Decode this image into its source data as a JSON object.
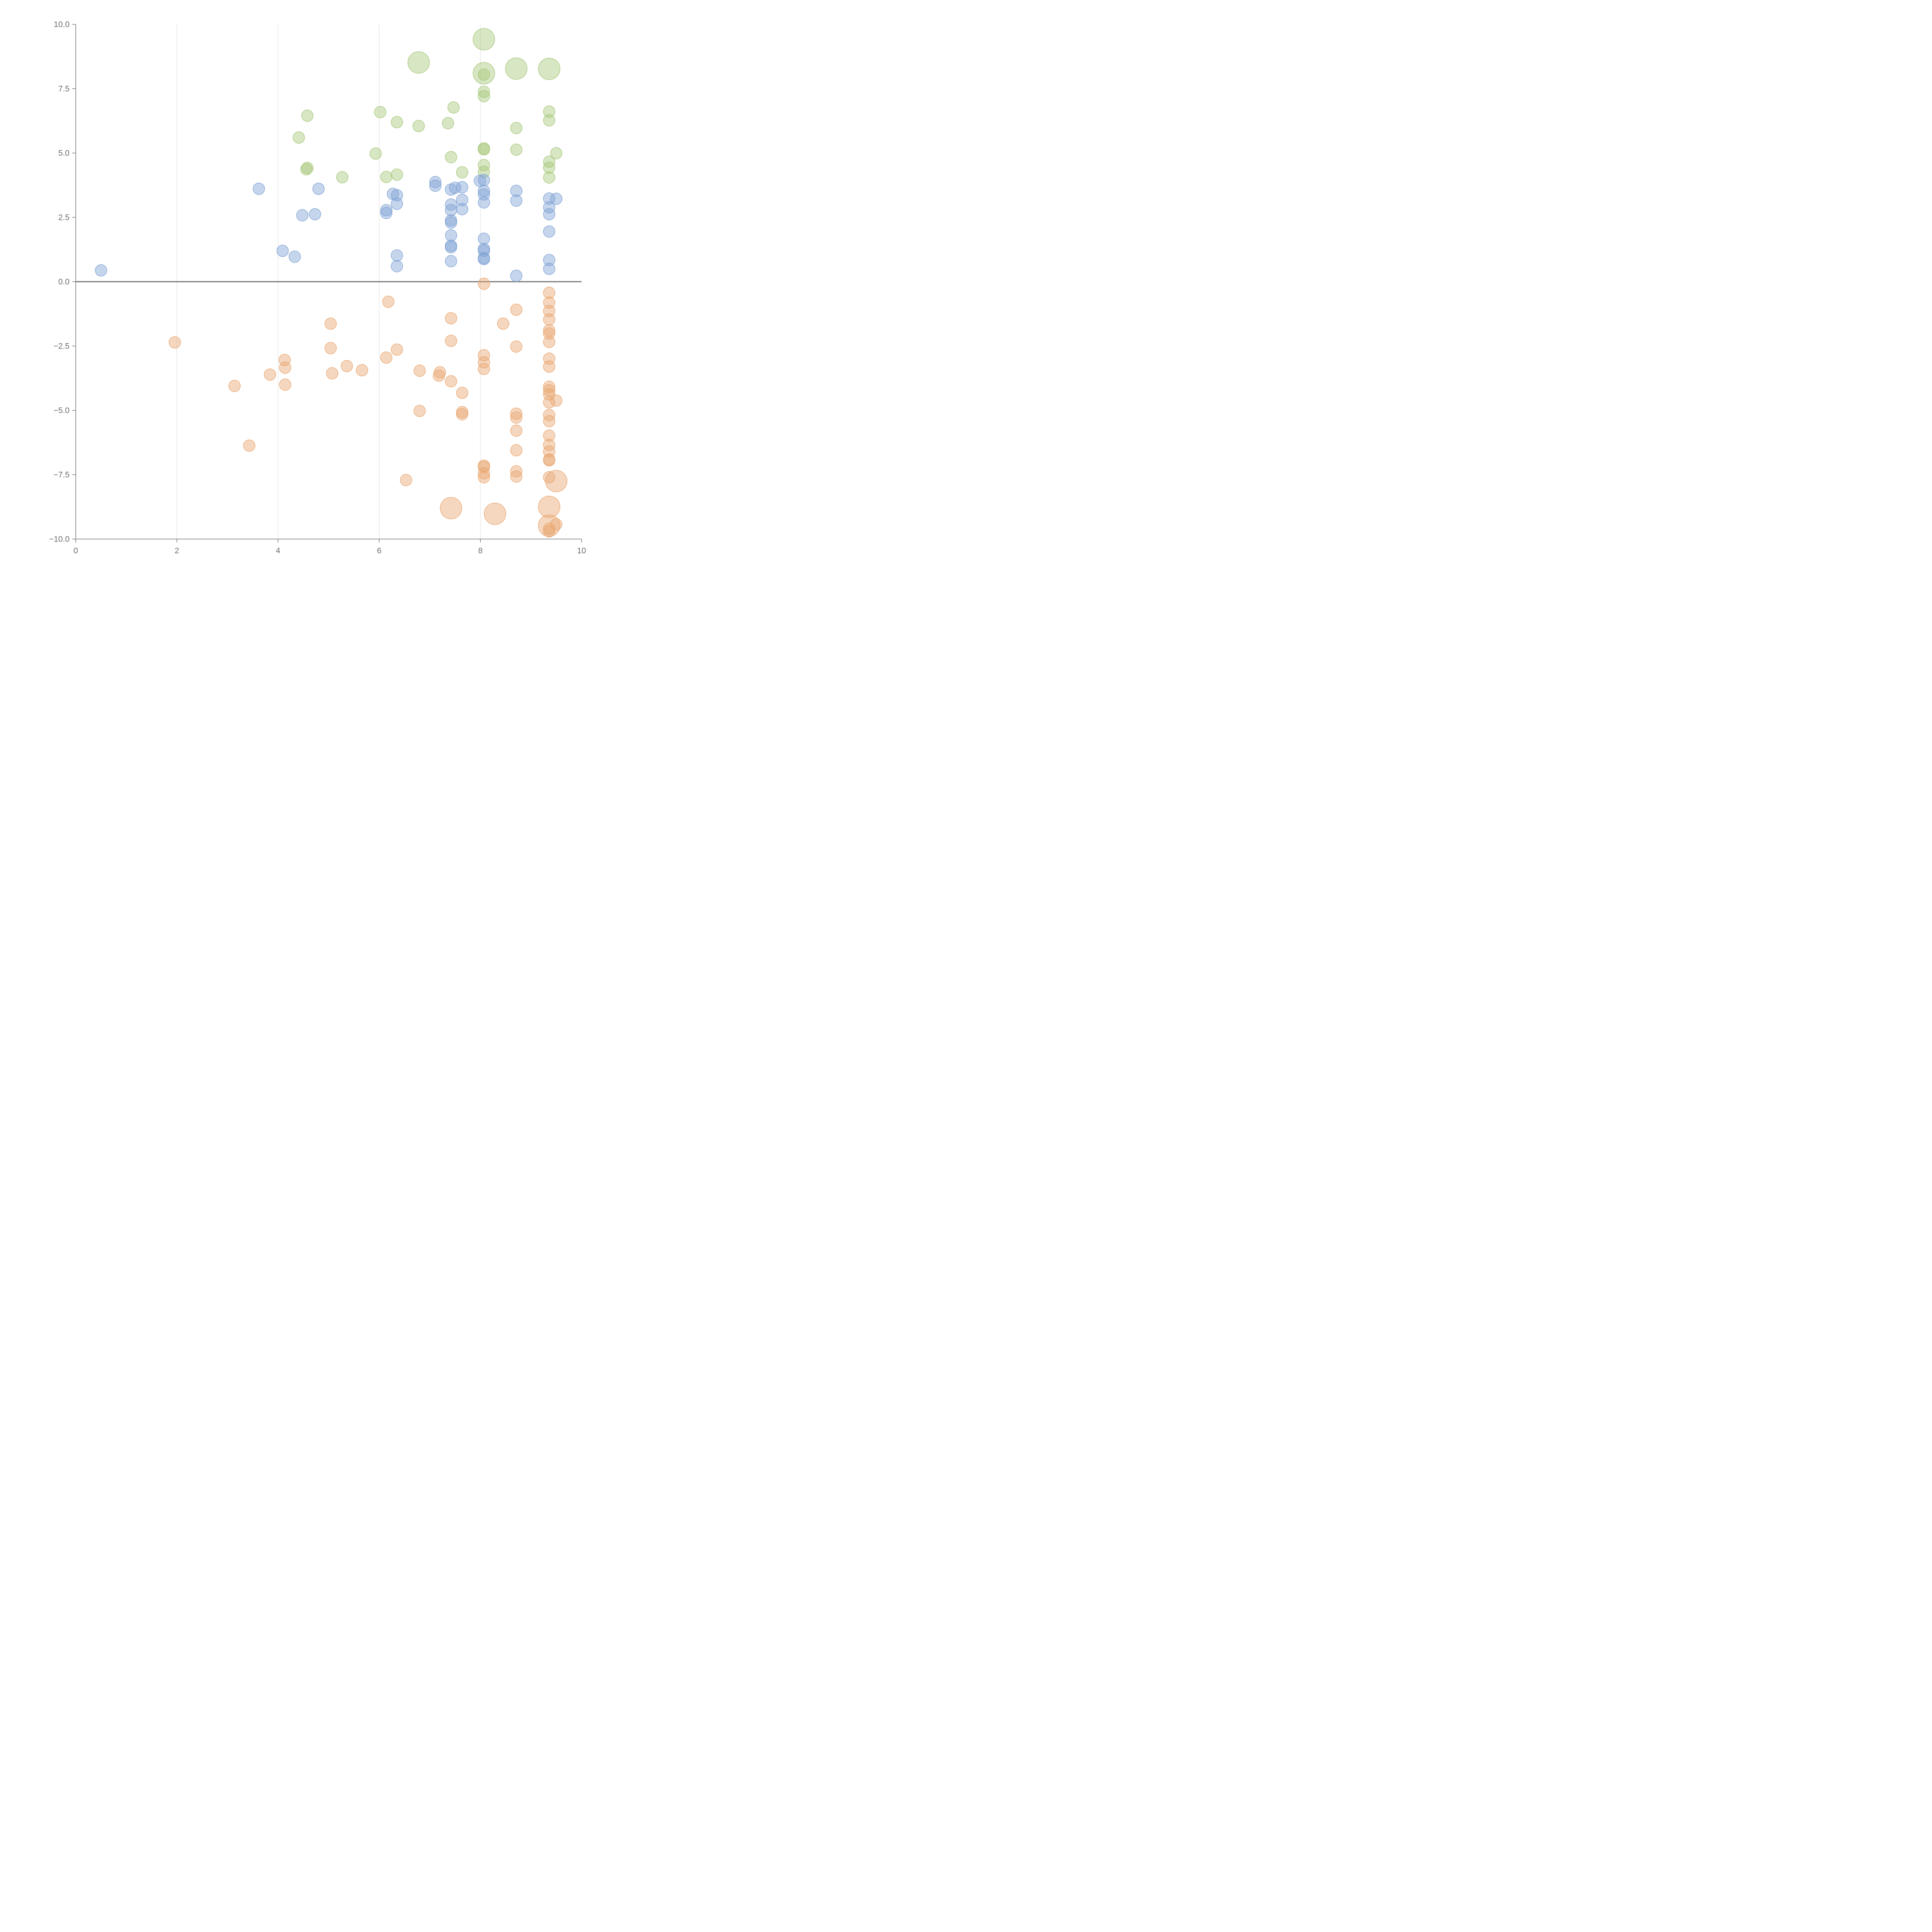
{
  "chart_data": {
    "type": "scatter",
    "title": "",
    "xlabel": "",
    "ylabel": "",
    "xlim": [
      0,
      10
    ],
    "ylim": [
      -10,
      10
    ],
    "x_ticks": [
      0,
      2,
      4,
      6,
      8,
      10
    ],
    "x_tick_labels": [
      "0",
      "2",
      "4",
      "6",
      "8",
      "10"
    ],
    "y_ticks": [
      -10,
      -7.5,
      -5,
      -2.5,
      0,
      2.5,
      5,
      7.5,
      10
    ],
    "y_tick_labels": [
      "−10.0",
      "−7.5",
      "−5.0",
      "−2.5",
      "0.0",
      "2.5",
      "5.0",
      "7.5",
      "10.0"
    ],
    "grid": "vertical",
    "zero_line": true,
    "series": [
      {
        "name": "green",
        "color": "#a7c77a",
        "points": [
          {
            "x": 8.07,
            "y": 9.42,
            "s": 2
          },
          {
            "x": 6.78,
            "y": 8.52,
            "s": 2
          },
          {
            "x": 8.71,
            "y": 8.28,
            "s": 2
          },
          {
            "x": 9.36,
            "y": 8.27,
            "s": 2
          },
          {
            "x": 8.07,
            "y": 8.1,
            "s": 2
          },
          {
            "x": 8.07,
            "y": 8.05,
            "s": 1
          },
          {
            "x": 8.07,
            "y": 7.38,
            "s": 1
          },
          {
            "x": 8.07,
            "y": 7.21,
            "s": 1
          },
          {
            "x": 7.47,
            "y": 6.77,
            "s": 1
          },
          {
            "x": 6.02,
            "y": 6.59,
            "s": 1
          },
          {
            "x": 9.36,
            "y": 6.61,
            "s": 1
          },
          {
            "x": 4.58,
            "y": 6.45,
            "s": 1
          },
          {
            "x": 9.36,
            "y": 6.27,
            "s": 1
          },
          {
            "x": 6.35,
            "y": 6.2,
            "s": 1
          },
          {
            "x": 7.36,
            "y": 6.16,
            "s": 1
          },
          {
            "x": 6.78,
            "y": 6.05,
            "s": 1
          },
          {
            "x": 8.71,
            "y": 5.97,
            "s": 1
          },
          {
            "x": 4.41,
            "y": 5.6,
            "s": 1
          },
          {
            "x": 8.07,
            "y": 5.18,
            "s": 1
          },
          {
            "x": 8.07,
            "y": 5.14,
            "s": 1
          },
          {
            "x": 8.71,
            "y": 5.13,
            "s": 1
          },
          {
            "x": 9.5,
            "y": 4.99,
            "s": 1
          },
          {
            "x": 5.93,
            "y": 4.98,
            "s": 1
          },
          {
            "x": 7.42,
            "y": 4.84,
            "s": 1
          },
          {
            "x": 9.36,
            "y": 4.66,
            "s": 1
          },
          {
            "x": 8.07,
            "y": 4.53,
            "s": 1
          },
          {
            "x": 9.36,
            "y": 4.43,
            "s": 1
          },
          {
            "x": 4.58,
            "y": 4.42,
            "s": 1
          },
          {
            "x": 4.56,
            "y": 4.37,
            "s": 1
          },
          {
            "x": 8.07,
            "y": 4.27,
            "s": 1
          },
          {
            "x": 7.64,
            "y": 4.25,
            "s": 1
          },
          {
            "x": 6.35,
            "y": 4.16,
            "s": 1
          },
          {
            "x": 5.27,
            "y": 4.06,
            "s": 1
          },
          {
            "x": 6.14,
            "y": 4.07,
            "s": 1
          },
          {
            "x": 9.36,
            "y": 4.05,
            "s": 1
          }
        ]
      },
      {
        "name": "blue",
        "color": "#7fa2d4",
        "points": [
          {
            "x": 7.11,
            "y": 3.87,
            "s": 1
          },
          {
            "x": 7.99,
            "y": 3.92,
            "s": 1
          },
          {
            "x": 8.07,
            "y": 3.95,
            "s": 1
          },
          {
            "x": 7.11,
            "y": 3.73,
            "s": 1
          },
          {
            "x": 7.64,
            "y": 3.67,
            "s": 1
          },
          {
            "x": 7.5,
            "y": 3.65,
            "s": 1
          },
          {
            "x": 3.62,
            "y": 3.61,
            "s": 1
          },
          {
            "x": 4.8,
            "y": 3.61,
            "s": 1
          },
          {
            "x": 7.42,
            "y": 3.58,
            "s": 1
          },
          {
            "x": 8.07,
            "y": 3.53,
            "s": 1
          },
          {
            "x": 8.71,
            "y": 3.53,
            "s": 1
          },
          {
            "x": 6.27,
            "y": 3.41,
            "s": 1
          },
          {
            "x": 8.07,
            "y": 3.39,
            "s": 1
          },
          {
            "x": 6.35,
            "y": 3.36,
            "s": 1
          },
          {
            "x": 9.36,
            "y": 3.23,
            "s": 1
          },
          {
            "x": 9.5,
            "y": 3.22,
            "s": 1
          },
          {
            "x": 7.64,
            "y": 3.18,
            "s": 1
          },
          {
            "x": 8.71,
            "y": 3.15,
            "s": 1
          },
          {
            "x": 8.07,
            "y": 3.08,
            "s": 1
          },
          {
            "x": 6.35,
            "y": 3.03,
            "s": 1
          },
          {
            "x": 7.42,
            "y": 3.0,
            "s": 1
          },
          {
            "x": 9.36,
            "y": 2.89,
            "s": 1
          },
          {
            "x": 7.64,
            "y": 2.82,
            "s": 1
          },
          {
            "x": 6.14,
            "y": 2.78,
            "s": 1
          },
          {
            "x": 7.42,
            "y": 2.78,
            "s": 1
          },
          {
            "x": 6.14,
            "y": 2.67,
            "s": 1
          },
          {
            "x": 9.36,
            "y": 2.62,
            "s": 1
          },
          {
            "x": 4.73,
            "y": 2.62,
            "s": 1
          },
          {
            "x": 4.48,
            "y": 2.58,
            "s": 1
          },
          {
            "x": 7.42,
            "y": 2.38,
            "s": 1
          },
          {
            "x": 7.42,
            "y": 2.3,
            "s": 1
          },
          {
            "x": 9.36,
            "y": 1.95,
            "s": 1
          },
          {
            "x": 7.42,
            "y": 1.8,
            "s": 1
          },
          {
            "x": 8.07,
            "y": 1.67,
            "s": 1
          },
          {
            "x": 7.42,
            "y": 1.4,
            "s": 1
          },
          {
            "x": 7.42,
            "y": 1.34,
            "s": 1
          },
          {
            "x": 8.07,
            "y": 1.27,
            "s": 1
          },
          {
            "x": 8.07,
            "y": 1.2,
            "s": 1
          },
          {
            "x": 4.09,
            "y": 1.2,
            "s": 1
          },
          {
            "x": 6.35,
            "y": 1.02,
            "s": 1
          },
          {
            "x": 4.33,
            "y": 0.97,
            "s": 1
          },
          {
            "x": 8.07,
            "y": 0.92,
            "s": 1
          },
          {
            "x": 8.07,
            "y": 0.88,
            "s": 1
          },
          {
            "x": 9.36,
            "y": 0.84,
            "s": 1
          },
          {
            "x": 7.42,
            "y": 0.8,
            "s": 1
          },
          {
            "x": 6.35,
            "y": 0.6,
            "s": 1
          },
          {
            "x": 9.36,
            "y": 0.5,
            "s": 1
          },
          {
            "x": 0.5,
            "y": 0.44,
            "s": 1
          },
          {
            "x": 8.71,
            "y": 0.23,
            "s": 1
          }
        ]
      },
      {
        "name": "orange",
        "color": "#e9a670",
        "points": [
          {
            "x": 8.07,
            "y": -0.08,
            "s": 1
          },
          {
            "x": 9.36,
            "y": -0.43,
            "s": 1
          },
          {
            "x": 6.18,
            "y": -0.78,
            "s": 1
          },
          {
            "x": 9.36,
            "y": -0.81,
            "s": 1
          },
          {
            "x": 8.71,
            "y": -1.09,
            "s": 1
          },
          {
            "x": 9.36,
            "y": -1.14,
            "s": 1
          },
          {
            "x": 7.42,
            "y": -1.42,
            "s": 1
          },
          {
            "x": 9.36,
            "y": -1.47,
            "s": 1
          },
          {
            "x": 5.04,
            "y": -1.63,
            "s": 1
          },
          {
            "x": 8.45,
            "y": -1.63,
            "s": 1
          },
          {
            "x": 9.36,
            "y": -1.89,
            "s": 1
          },
          {
            "x": 9.36,
            "y": -2.01,
            "s": 1
          },
          {
            "x": 1.96,
            "y": -2.36,
            "s": 1
          },
          {
            "x": 7.42,
            "y": -2.3,
            "s": 1
          },
          {
            "x": 9.36,
            "y": -2.34,
            "s": 1
          },
          {
            "x": 8.71,
            "y": -2.52,
            "s": 1
          },
          {
            "x": 5.04,
            "y": -2.58,
            "s": 1
          },
          {
            "x": 6.35,
            "y": -2.64,
            "s": 1
          },
          {
            "x": 8.07,
            "y": -2.86,
            "s": 1
          },
          {
            "x": 6.14,
            "y": -2.95,
            "s": 1
          },
          {
            "x": 9.36,
            "y": -2.99,
            "s": 1
          },
          {
            "x": 4.13,
            "y": -3.04,
            "s": 1
          },
          {
            "x": 8.07,
            "y": -3.13,
            "s": 1
          },
          {
            "x": 5.36,
            "y": -3.28,
            "s": 1
          },
          {
            "x": 4.14,
            "y": -3.34,
            "s": 1
          },
          {
            "x": 9.36,
            "y": -3.3,
            "s": 1
          },
          {
            "x": 8.07,
            "y": -3.39,
            "s": 1
          },
          {
            "x": 5.66,
            "y": -3.44,
            "s": 1
          },
          {
            "x": 6.8,
            "y": -3.46,
            "s": 1
          },
          {
            "x": 7.2,
            "y": -3.52,
            "s": 1
          },
          {
            "x": 5.07,
            "y": -3.56,
            "s": 1
          },
          {
            "x": 3.84,
            "y": -3.61,
            "s": 1
          },
          {
            "x": 7.18,
            "y": -3.65,
            "s": 1
          },
          {
            "x": 7.42,
            "y": -3.87,
            "s": 1
          },
          {
            "x": 4.14,
            "y": -4.0,
            "s": 1
          },
          {
            "x": 3.14,
            "y": -4.05,
            "s": 1
          },
          {
            "x": 9.36,
            "y": -4.08,
            "s": 1
          },
          {
            "x": 9.36,
            "y": -4.22,
            "s": 1
          },
          {
            "x": 7.64,
            "y": -4.32,
            "s": 1
          },
          {
            "x": 9.36,
            "y": -4.38,
            "s": 1
          },
          {
            "x": 9.5,
            "y": -4.62,
            "s": 1
          },
          {
            "x": 9.36,
            "y": -4.69,
            "s": 1
          },
          {
            "x": 6.8,
            "y": -5.02,
            "s": 1
          },
          {
            "x": 7.64,
            "y": -5.07,
            "s": 1
          },
          {
            "x": 7.64,
            "y": -5.15,
            "s": 1
          },
          {
            "x": 8.71,
            "y": -5.13,
            "s": 1
          },
          {
            "x": 9.36,
            "y": -5.18,
            "s": 1
          },
          {
            "x": 8.71,
            "y": -5.28,
            "s": 1
          },
          {
            "x": 9.36,
            "y": -5.42,
            "s": 1
          },
          {
            "x": 8.71,
            "y": -5.79,
            "s": 1
          },
          {
            "x": 9.36,
            "y": -5.98,
            "s": 1
          },
          {
            "x": 3.43,
            "y": -6.37,
            "s": 1
          },
          {
            "x": 9.36,
            "y": -6.34,
            "s": 1
          },
          {
            "x": 8.71,
            "y": -6.55,
            "s": 1
          },
          {
            "x": 9.36,
            "y": -6.6,
            "s": 1
          },
          {
            "x": 9.36,
            "y": -6.91,
            "s": 1
          },
          {
            "x": 9.36,
            "y": -6.94,
            "s": 1
          },
          {
            "x": 8.07,
            "y": -7.15,
            "s": 1
          },
          {
            "x": 8.07,
            "y": -7.2,
            "s": 1
          },
          {
            "x": 8.71,
            "y": -7.37,
            "s": 1
          },
          {
            "x": 8.07,
            "y": -7.45,
            "s": 1
          },
          {
            "x": 8.07,
            "y": -7.6,
            "s": 1
          },
          {
            "x": 8.71,
            "y": -7.57,
            "s": 1
          },
          {
            "x": 9.36,
            "y": -7.6,
            "s": 1
          },
          {
            "x": 6.53,
            "y": -7.71,
            "s": 1
          },
          {
            "x": 9.5,
            "y": -7.75,
            "s": 2
          },
          {
            "x": 9.36,
            "y": -8.75,
            "s": 2
          },
          {
            "x": 7.42,
            "y": -8.8,
            "s": 2
          },
          {
            "x": 8.29,
            "y": -9.02,
            "s": 2
          },
          {
            "x": 9.36,
            "y": -9.48,
            "s": 2
          },
          {
            "x": 9.36,
            "y": -9.6,
            "s": 1
          },
          {
            "x": 9.5,
            "y": -9.43,
            "s": 1
          },
          {
            "x": 9.36,
            "y": -9.7,
            "s": 1
          }
        ]
      }
    ]
  }
}
